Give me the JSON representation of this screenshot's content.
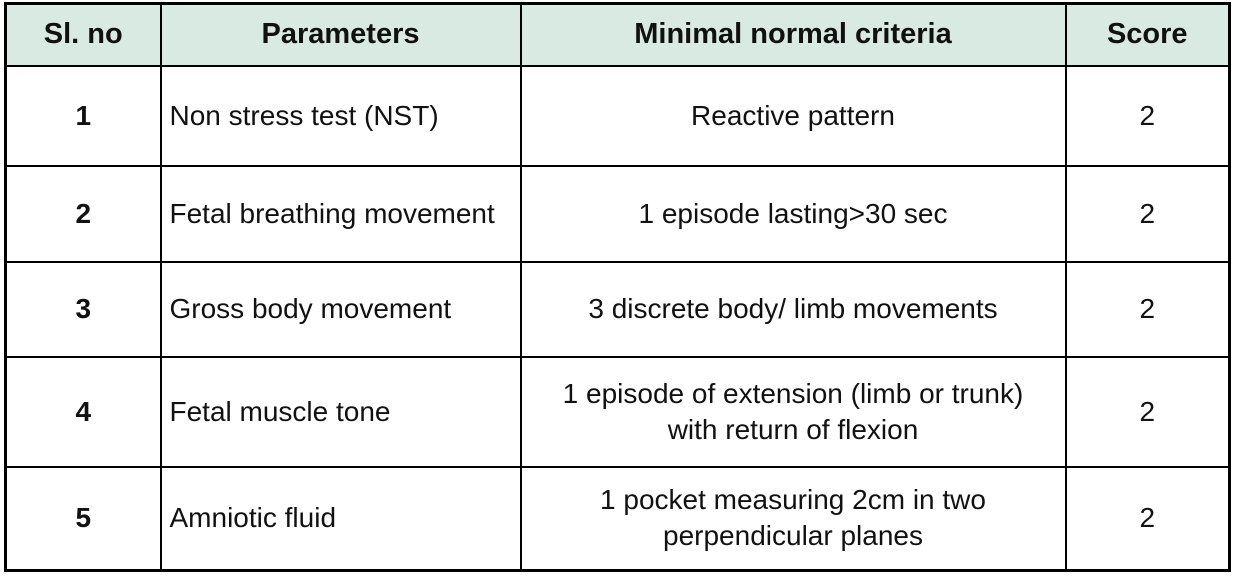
{
  "colors": {
    "page_bg": "#ffffff",
    "header_bg": "#d9eae3",
    "border": "#000000",
    "text": "#111111"
  },
  "table": {
    "columns": [
      "Sl. no",
      "Parameters",
      "Minimal normal criteria",
      "Score"
    ],
    "rows": [
      {
        "sl_no": "1",
        "parameter": "Non stress test (NST)",
        "criteria": "Reactive pattern",
        "score": "2"
      },
      {
        "sl_no": "2",
        "parameter": "Fetal breathing movement",
        "criteria": "1 episode lasting>30 sec",
        "score": "2"
      },
      {
        "sl_no": "3",
        "parameter": "Gross body movement",
        "criteria": "3 discrete body/ limb movements",
        "score": "2"
      },
      {
        "sl_no": "4",
        "parameter": "Fetal muscle tone",
        "criteria": "1 episode of extension (limb or trunk)\nwith return of flexion",
        "score": "2"
      },
      {
        "sl_no": "5",
        "parameter": "Amniotic fluid",
        "criteria": "1 pocket measuring 2cm in two\nperpendicular planes",
        "score": "2"
      }
    ]
  }
}
